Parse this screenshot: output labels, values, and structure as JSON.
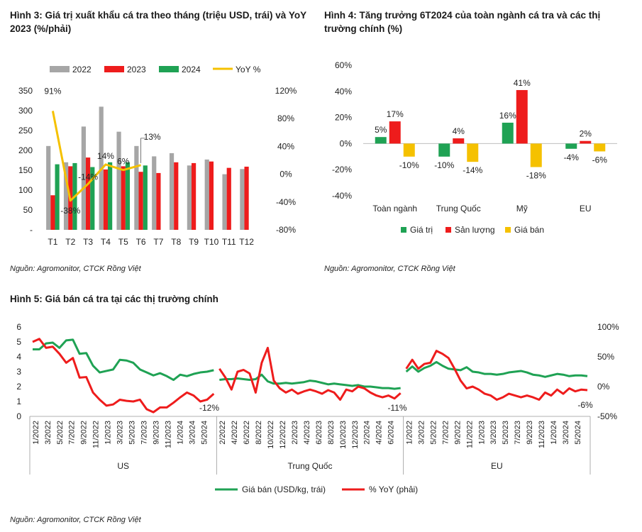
{
  "fig3": {
    "title": "Hình 3: Giá trị xuất khẩu cá tra theo tháng (triệu USD, trái) và YoY 2023 (%/phải)",
    "source": "Nguồn: Agromonitor, CTCK Rồng Việt"
  },
  "fig4": {
    "title": "Hình 4: Tăng trưởng 6T2024 của toàn ngành cá tra và các thị trường chính (%)",
    "source": "Nguồn: Agromonitor, CTCK Rồng Việt"
  },
  "fig5": {
    "title": "Hình 5: Giá bán cá tra tại các thị trường chính",
    "source": "Nguồn: Agromonitor, CTCK Rồng Việt"
  },
  "colors": {
    "gray": "#a6a6a6",
    "red": "#ee1c1c",
    "green": "#1fa254",
    "yellow": "#f5c100"
  },
  "chart_data": [
    {
      "type": "bar",
      "title": "Hình 3: Giá trị xuất khẩu cá tra theo tháng (triệu USD, trái) và YoY 2023 (%/phải)",
      "categories": [
        "T1",
        "T2",
        "T3",
        "T4",
        "T5",
        "T6",
        "T7",
        "T8",
        "T9",
        "T10",
        "T11",
        "T12"
      ],
      "series": [
        {
          "name": "2022",
          "values": [
            211,
            170,
            260,
            310,
            247,
            211,
            185,
            193,
            162,
            177,
            140,
            153
          ]
        },
        {
          "name": "2023",
          "values": [
            87,
            160,
            182,
            152,
            160,
            146,
            143,
            170,
            168,
            172,
            156,
            159
          ]
        },
        {
          "name": "2024",
          "values": [
            165,
            168,
            158,
            170,
            170,
            162,
            null,
            null,
            null,
            null,
            null,
            null
          ]
        },
        {
          "name": "YoY %",
          "axis": "right",
          "type": "line",
          "values": [
            91,
            -38,
            -14,
            14,
            6,
            13,
            null,
            null,
            null,
            null,
            null,
            null
          ]
        }
      ],
      "yleft_ticks": [
        "-",
        "50",
        "100",
        "150",
        "200",
        "250",
        "300",
        "350"
      ],
      "yleft_range": [
        0,
        350
      ],
      "yright_ticks": [
        "-80%",
        "-40%",
        "0%",
        "40%",
        "80%",
        "120%"
      ],
      "yright_range": [
        -80,
        120
      ],
      "data_labels": [
        "91%",
        "-38%",
        "-14%",
        "14%",
        "6%",
        "13%"
      ],
      "legend": "top"
    },
    {
      "type": "bar",
      "title": "Hình 4: Tăng trưởng 6T2024 của toàn ngành cá tra và các thị trường chính (%)",
      "categories": [
        "Toàn ngành",
        "Trung Quốc",
        "Mỹ",
        "EU"
      ],
      "series": [
        {
          "name": "Giá trị",
          "values": [
            5,
            -10,
            16,
            -4
          ]
        },
        {
          "name": "Sản lượng",
          "values": [
            17,
            4,
            41,
            2
          ]
        },
        {
          "name": "Giá bán",
          "values": [
            -10,
            -14,
            -18,
            -6
          ]
        }
      ],
      "y_ticks": [
        "-40%",
        "-20%",
        "0%",
        "20%",
        "40%",
        "60%"
      ],
      "ylim": [
        -40,
        60
      ],
      "legend": "bottom"
    },
    {
      "type": "line",
      "title": "Hình 5: Giá bán cá tra tại các thị trường chính",
      "panels": [
        "US",
        "Trung Quốc",
        "EU"
      ],
      "panel_ticks": [
        [
          "1/2022",
          "3/2022",
          "5/2022",
          "7/2022",
          "9/2022",
          "11/2022",
          "1/2023",
          "3/2023",
          "5/2023",
          "7/2023",
          "9/2023",
          "11/2023",
          "1/2024",
          "3/2024",
          "5/2024"
        ],
        [
          "2/2022",
          "4/2022",
          "6/2022",
          "8/2022",
          "10/2022",
          "12/2022",
          "2/2023",
          "4/2023",
          "6/2023",
          "8/2023",
          "10/2023",
          "12/2023",
          "2/2024",
          "4/2024",
          "6/2024"
        ],
        [
          "1/2022",
          "3/2022",
          "5/2022",
          "7/2022",
          "9/2022",
          "11/2022",
          "1/2023",
          "3/2023",
          "5/2023",
          "7/2023",
          "9/2023",
          "11/2023",
          "1/2024",
          "3/2024",
          "5/2024"
        ]
      ],
      "series": [
        {
          "name": "Giá bán (USD/kg, trái)",
          "panels": [
            [
              4.5,
              4.5,
              4.9,
              4.95,
              4.6,
              5.1,
              5.15,
              4.2,
              4.25,
              3.4,
              2.95,
              3.05,
              3.15,
              3.8,
              3.75,
              3.6,
              3.15,
              2.95,
              2.75,
              2.9,
              2.7,
              2.45,
              2.8,
              2.7,
              2.85,
              2.95,
              3.0,
              3.1
            ],
            [
              2.45,
              2.5,
              2.5,
              2.55,
              2.5,
              2.45,
              2.5,
              2.8,
              2.35,
              2.2,
              2.2,
              2.25,
              2.2,
              2.25,
              2.3,
              2.4,
              2.35,
              2.25,
              2.15,
              2.2,
              2.15,
              2.1,
              2.05,
              2.1,
              2.0,
              2.0,
              1.95,
              1.9,
              1.9,
              1.85,
              1.9
            ],
            [
              3.0,
              3.35,
              3.0,
              3.25,
              3.4,
              3.65,
              3.4,
              3.2,
              3.15,
              3.1,
              3.3,
              3.0,
              2.95,
              2.85,
              2.85,
              2.8,
              2.85,
              2.95,
              3.0,
              3.05,
              2.95,
              2.8,
              2.75,
              2.65,
              2.75,
              2.85,
              2.8,
              2.7,
              2.75,
              2.75,
              2.7
            ]
          ]
        },
        {
          "name": "% YoY (phải)",
          "panels": [
            [
              75,
              80,
              65,
              67,
              55,
              40,
              48,
              15,
              16,
              -10,
              -22,
              -32,
              -30,
              -22,
              -24,
              -25,
              -22,
              -38,
              -43,
              -35,
              -35,
              -27,
              -18,
              -10,
              -15,
              -25,
              -22,
              -12
            ],
            [
              30,
              15,
              -5,
              25,
              28,
              22,
              -10,
              40,
              65,
              10,
              -3,
              -10,
              -5,
              -12,
              -8,
              -5,
              -8,
              -12,
              -6,
              -10,
              -22,
              -5,
              -8,
              0,
              -3,
              -10,
              -15,
              -18,
              -15,
              -20,
              -11
            ],
            [
              30,
              45,
              30,
              38,
              40,
              60,
              55,
              48,
              30,
              10,
              -3,
              0,
              -5,
              -12,
              -15,
              -22,
              -18,
              -12,
              -15,
              -18,
              -15,
              -18,
              -22,
              -10,
              -15,
              -5,
              -12,
              -3,
              -8,
              -5,
              -6
            ]
          ]
        }
      ],
      "yleft_ticks": [
        "0",
        "1",
        "2",
        "3",
        "4",
        "5",
        "6"
      ],
      "yleft_range": [
        0,
        6
      ],
      "yright_ticks": [
        "-50%",
        "0%",
        "50%",
        "100%"
      ],
      "yright_range": [
        -50,
        100
      ],
      "end_labels": [
        "-12%",
        "-11%",
        "-6%"
      ],
      "legend": "bottom"
    }
  ]
}
